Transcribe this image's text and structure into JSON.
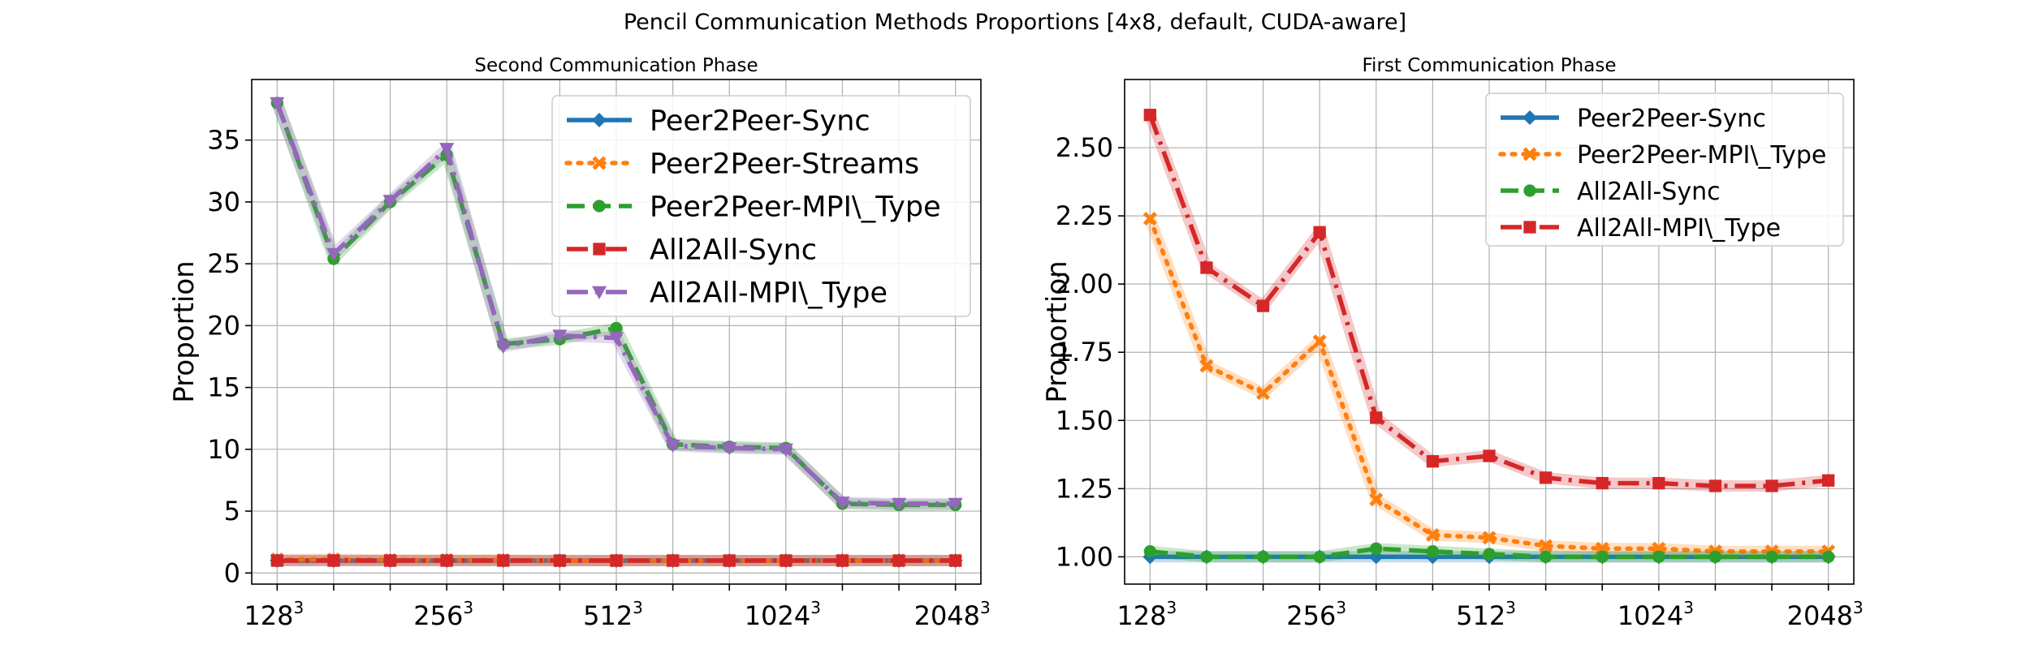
{
  "figure": {
    "suptitle": "Pencil Communication Methods Proportions [4x8, default, CUDA-aware]"
  },
  "colors": {
    "blue": "#1f77b4",
    "orange": "#ff7f0e",
    "green": "#2ca02c",
    "red": "#d62728",
    "purple": "#9467bd",
    "grid": "#b0b0b0"
  },
  "chart_data": [
    {
      "type": "line",
      "title": "Second Communication Phase",
      "ylabel": "Proportion",
      "xlabel": "",
      "x_tick_labels": [
        {
          "base": "128",
          "exp": "3"
        },
        {
          "base": "256",
          "exp": "3"
        },
        {
          "base": "512",
          "exp": "3"
        },
        {
          "base": "1024",
          "exp": "3"
        },
        {
          "base": "2048",
          "exp": "3"
        }
      ],
      "y_ticks": [
        "0",
        "5",
        "10",
        "15",
        "20",
        "25",
        "30",
        "35"
      ],
      "ylim": [
        -0.9,
        39.9
      ],
      "grid": true,
      "legend_position": "top-right",
      "series": [
        {
          "name": "Peer2Peer-Sync",
          "color": "blue",
          "marker": "diamond",
          "dash": "solid",
          "values": [
            1.0,
            1.0,
            1.0,
            1.0,
            1.0,
            1.0,
            1.0,
            1.0,
            1.0,
            1.0,
            1.0,
            1.0,
            1.0
          ]
        },
        {
          "name": "Peer2Peer-Streams",
          "color": "orange",
          "marker": "x",
          "dash": "dotted",
          "values": [
            1.1,
            1.1,
            1.05,
            1.05,
            1.05,
            1.0,
            1.0,
            1.0,
            1.0,
            1.0,
            1.0,
            1.0,
            1.0
          ]
        },
        {
          "name": "Peer2Peer-MPI\\_Type",
          "color": "green",
          "marker": "circle",
          "dash": "dashed",
          "values": [
            38.0,
            25.4,
            30.0,
            33.8,
            18.5,
            18.9,
            19.8,
            10.4,
            10.2,
            10.1,
            5.6,
            5.5,
            5.5
          ]
        },
        {
          "name": "All2All-Sync",
          "color": "red",
          "marker": "square",
          "dash": "dashdot",
          "values": [
            1.0,
            1.0,
            1.0,
            1.0,
            1.0,
            1.0,
            1.0,
            1.0,
            1.0,
            1.0,
            1.0,
            1.0,
            1.0
          ]
        },
        {
          "name": "All2All-MPI\\_Type",
          "color": "purple",
          "marker": "triangle-down",
          "dash": "dashdot",
          "values": [
            38.0,
            25.8,
            30.1,
            34.3,
            18.3,
            19.2,
            19.0,
            10.3,
            10.1,
            10.0,
            5.7,
            5.6,
            5.6
          ]
        }
      ]
    },
    {
      "type": "line",
      "title": "First Communication Phase",
      "ylabel": "Proportion",
      "xlabel": "",
      "x_tick_labels": [
        {
          "base": "128",
          "exp": "3"
        },
        {
          "base": "256",
          "exp": "3"
        },
        {
          "base": "512",
          "exp": "3"
        },
        {
          "base": "1024",
          "exp": "3"
        },
        {
          "base": "2048",
          "exp": "3"
        }
      ],
      "y_ticks": [
        "1.00",
        "1.25",
        "1.50",
        "1.75",
        "2.00",
        "2.25",
        "2.50"
      ],
      "ylim": [
        0.9,
        2.75
      ],
      "grid": true,
      "legend_position": "top-right",
      "series": [
        {
          "name": "Peer2Peer-Sync",
          "color": "blue",
          "marker": "diamond",
          "dash": "solid",
          "values": [
            1.0,
            1.0,
            1.0,
            1.0,
            1.0,
            1.0,
            1.0,
            1.0,
            1.0,
            1.0,
            1.0,
            1.0,
            1.0
          ]
        },
        {
          "name": "Peer2Peer-MPI\\_Type",
          "color": "orange",
          "marker": "x",
          "dash": "dotted",
          "values": [
            2.24,
            1.7,
            1.6,
            1.79,
            1.21,
            1.08,
            1.07,
            1.04,
            1.03,
            1.03,
            1.02,
            1.02,
            1.02
          ]
        },
        {
          "name": "All2All-Sync",
          "color": "green",
          "marker": "circle",
          "dash": "dashed",
          "values": [
            1.02,
            1.0,
            1.0,
            1.0,
            1.03,
            1.02,
            1.01,
            1.0,
            1.0,
            1.0,
            1.0,
            1.0,
            1.0
          ]
        },
        {
          "name": "All2All-MPI\\_Type",
          "color": "red",
          "marker": "square",
          "dash": "dashdot",
          "values": [
            2.62,
            2.06,
            1.92,
            2.19,
            1.51,
            1.35,
            1.37,
            1.29,
            1.27,
            1.27,
            1.26,
            1.26,
            1.28
          ]
        }
      ]
    }
  ]
}
